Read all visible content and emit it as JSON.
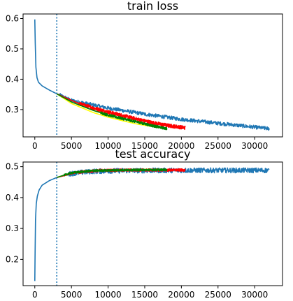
{
  "chart_data": [
    {
      "type": "line",
      "title": "train loss",
      "xlabel": "",
      "ylabel": "",
      "xlim": [
        -1600,
        33800
      ],
      "ylim": [
        0.21,
        0.615
      ],
      "xticks": [
        0,
        5000,
        10000,
        15000,
        20000,
        25000,
        30000
      ],
      "yticks": [
        0.3,
        0.4,
        0.5,
        0.6
      ],
      "xtick_labels": [
        "0",
        "5000",
        "10000",
        "15000",
        "20000",
        "25000",
        "30000"
      ],
      "ytick_labels": [
        "0.3",
        "0.4",
        "0.5",
        "0.6"
      ],
      "vline": {
        "x": 3000,
        "color": "#1f77b4",
        "style": "dotted"
      },
      "series": [
        {
          "color": "#1f77b4",
          "noise": 0.006,
          "start_noise_x": 3300,
          "x": [
            0,
            60,
            150,
            300,
            500,
            1000,
            2000,
            3000,
            5000,
            10000,
            15000,
            20000,
            25000,
            30000,
            32000
          ],
          "y": [
            0.597,
            0.52,
            0.44,
            0.405,
            0.39,
            0.378,
            0.364,
            0.352,
            0.33,
            0.305,
            0.285,
            0.268,
            0.255,
            0.242,
            0.237
          ]
        },
        {
          "color": "#ffff00",
          "noise": 0.0,
          "x": [
            3000,
            5000,
            8000,
            10000,
            12000,
            14000,
            16000,
            17500
          ],
          "y": [
            0.352,
            0.32,
            0.29,
            0.275,
            0.263,
            0.252,
            0.244,
            0.24
          ]
        },
        {
          "color": "#ff0000",
          "noise": 0.006,
          "start_noise_x": 6000,
          "x": [
            3000,
            6000,
            8000,
            10000,
            12000,
            14000,
            16000,
            18000,
            20500
          ],
          "y": [
            0.352,
            0.32,
            0.305,
            0.292,
            0.28,
            0.268,
            0.257,
            0.248,
            0.24
          ]
        },
        {
          "color": "#008000",
          "noise": 0.004,
          "start_noise_x": 9000,
          "x": [
            3000,
            5000,
            8000,
            10000,
            12000,
            14000,
            16000,
            18000
          ],
          "y": [
            0.352,
            0.325,
            0.297,
            0.282,
            0.27,
            0.259,
            0.247,
            0.237
          ]
        }
      ]
    },
    {
      "type": "line",
      "title": "test accuracy",
      "xlabel": "",
      "ylabel": "",
      "xlim": [
        -1600,
        33800
      ],
      "ylim": [
        0.115,
        0.515
      ],
      "xticks": [
        0,
        5000,
        10000,
        15000,
        20000,
        25000,
        30000
      ],
      "yticks": [
        0.2,
        0.3,
        0.4,
        0.5
      ],
      "xtick_labels": [
        "0",
        "5000",
        "10000",
        "15000",
        "20000",
        "25000",
        "30000"
      ],
      "ytick_labels": [
        "0.2",
        "0.3",
        "0.4",
        "0.5"
      ],
      "vline": {
        "x": 3000,
        "color": "#1f77b4",
        "style": "dotted"
      },
      "series": [
        {
          "color": "#1f77b4",
          "noise": 0.008,
          "start_noise_x": 4500,
          "x": [
            0,
            40,
            100,
            200,
            350,
            600,
            1000,
            2000,
            3000,
            5000,
            8000,
            12000,
            20000,
            32000
          ],
          "y": [
            0.13,
            0.22,
            0.33,
            0.38,
            0.405,
            0.425,
            0.44,
            0.455,
            0.465,
            0.478,
            0.485,
            0.487,
            0.488,
            0.488
          ]
        },
        {
          "color": "#ffff00",
          "noise": 0.002,
          "start_noise_x": 5000,
          "x": [
            3000,
            5000,
            8000,
            12000,
            17500
          ],
          "y": [
            0.465,
            0.48,
            0.487,
            0.489,
            0.49
          ]
        },
        {
          "color": "#ff0000",
          "noise": 0.004,
          "start_noise_x": 6000,
          "x": [
            3000,
            6000,
            9000,
            14000,
            20500
          ],
          "y": [
            0.465,
            0.482,
            0.488,
            0.489,
            0.489
          ]
        },
        {
          "color": "#008000",
          "noise": 0.003,
          "start_noise_x": 4000,
          "x": [
            3000,
            5000,
            8000,
            12000,
            18000
          ],
          "y": [
            0.465,
            0.48,
            0.487,
            0.489,
            0.49
          ]
        }
      ]
    }
  ]
}
